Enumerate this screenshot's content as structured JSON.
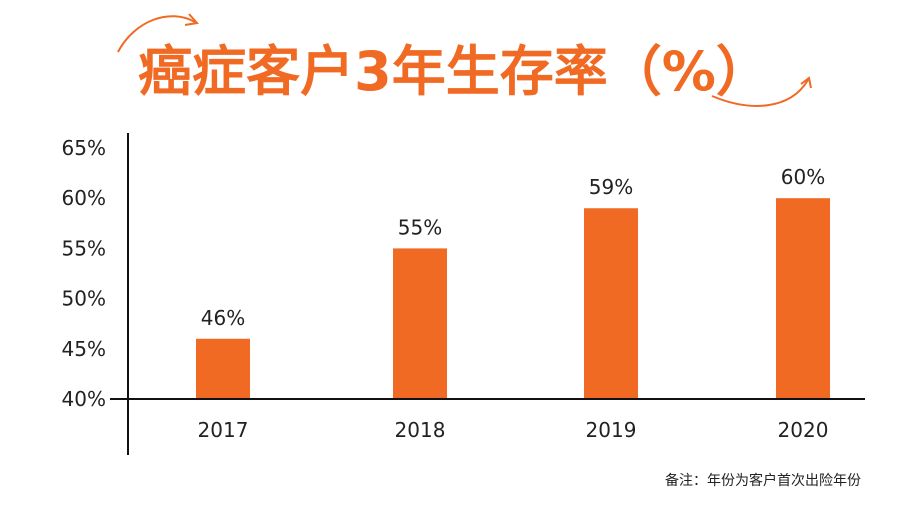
{
  "chart_data": {
    "type": "bar",
    "title": "癌症客户3年生存率（%）",
    "categories": [
      "2017",
      "2018",
      "2019",
      "2020"
    ],
    "values": [
      46,
      55,
      59,
      60
    ],
    "data_labels": [
      "46%",
      "55%",
      "59%",
      "60%"
    ],
    "y_ticks": [
      "40%",
      "45%",
      "50%",
      "55%",
      "60%",
      "65%"
    ],
    "ylim": [
      40,
      65
    ],
    "bar_color": "#f06a24",
    "title_color": "#f06a24",
    "grid": false,
    "footnote": "备注：年份为客户首次出险年份"
  }
}
